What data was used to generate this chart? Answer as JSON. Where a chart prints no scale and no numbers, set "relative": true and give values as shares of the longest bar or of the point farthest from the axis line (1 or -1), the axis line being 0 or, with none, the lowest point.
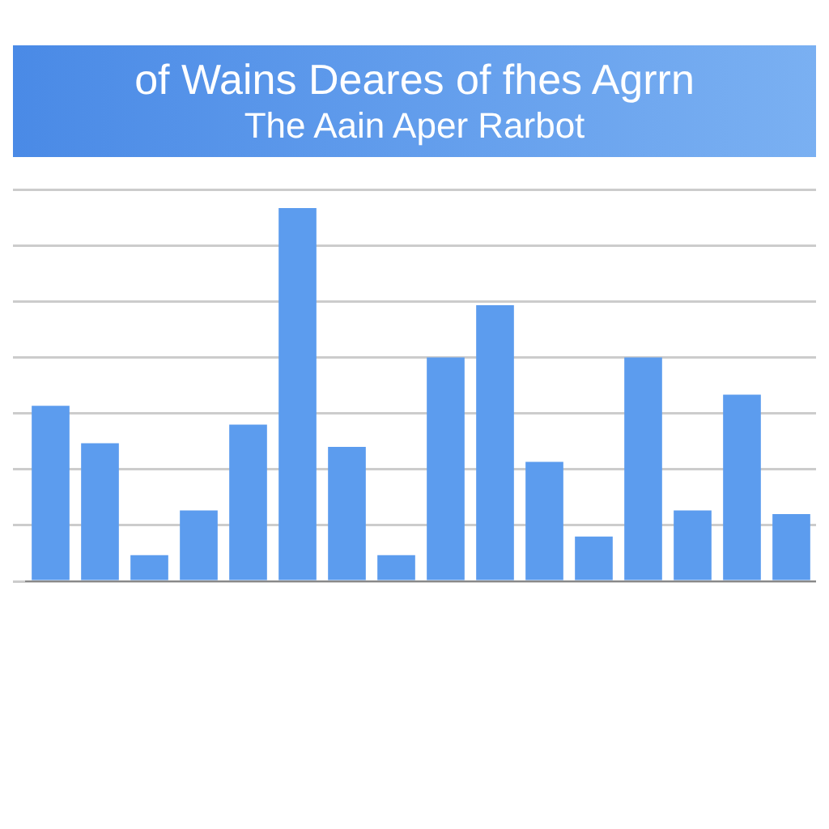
{
  "chart_data": {
    "type": "bar",
    "title": "of Wains Deares of fhes Agrrn",
    "subtitle": "The Aain Aper Rarbot",
    "relative": true,
    "grid": "y",
    "color": "#5c9cee",
    "categories": [
      null,
      null,
      null,
      null,
      null,
      null,
      null,
      null,
      null,
      null,
      null,
      null,
      null,
      null,
      null,
      null
    ],
    "values": [
      0.47,
      0.37,
      0.07,
      0.19,
      0.42,
      1,
      0.36,
      0.07,
      0.6,
      0.74,
      0.32,
      0.12,
      0.6,
      0.19,
      0.5,
      0.18
    ]
  }
}
